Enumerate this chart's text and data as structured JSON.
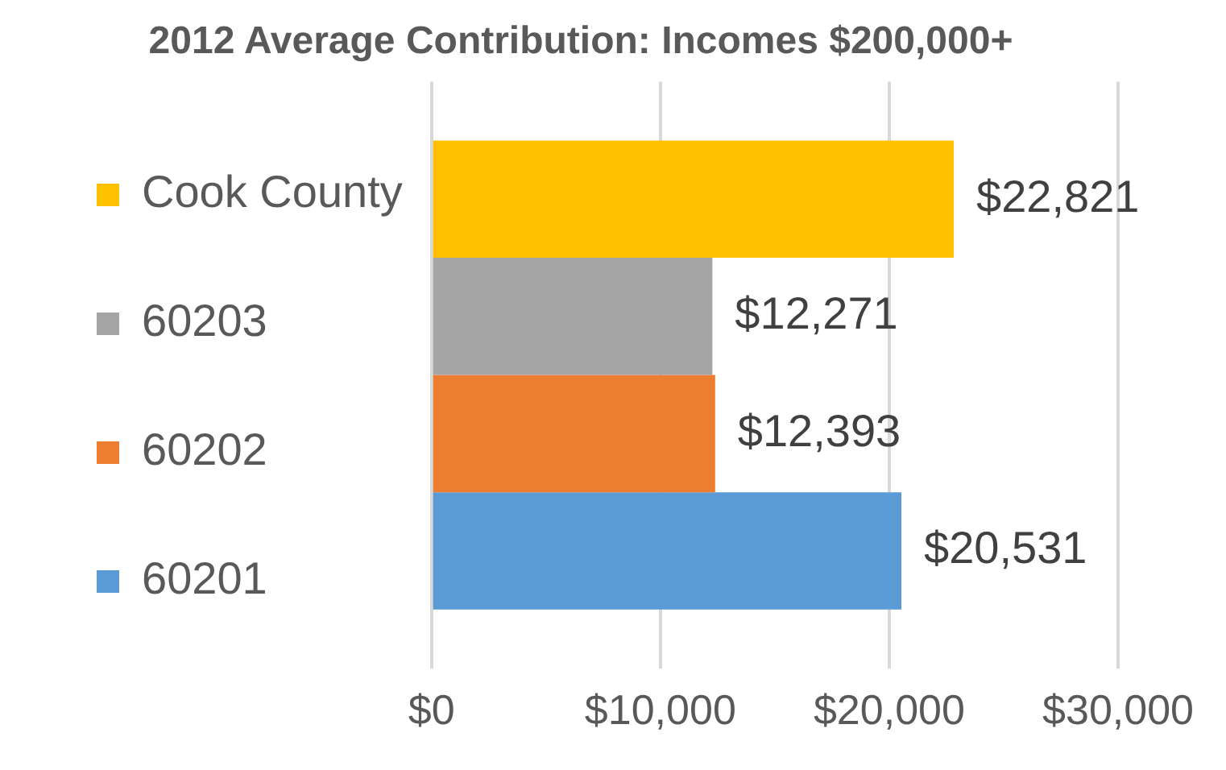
{
  "chart_data": {
    "type": "bar",
    "orientation": "horizontal",
    "title": "2012 Average Contribution: Incomes $200,000+",
    "categories": [
      null
    ],
    "series": [
      {
        "name": "Cook County",
        "color": "#ffc000",
        "values": [
          22821
        ],
        "value_labels": [
          "$22,821"
        ]
      },
      {
        "name": "60203",
        "color": "#a5a5a5",
        "values": [
          12271
        ],
        "value_labels": [
          "$12,271"
        ]
      },
      {
        "name": "60202",
        "color": "#ed7d31",
        "values": [
          12393
        ],
        "value_labels": [
          "$12,393"
        ]
      },
      {
        "name": "60201",
        "color": "#5b9bd5",
        "values": [
          20531
        ],
        "value_labels": [
          "$20,531"
        ]
      }
    ],
    "xlim": [
      0,
      30000
    ],
    "xticks": [
      {
        "value": 0,
        "label": "$0"
      },
      {
        "value": 10000,
        "label": "$10,000"
      },
      {
        "value": 20000,
        "label": "$20,000"
      },
      {
        "value": 30000,
        "label": "$30,000"
      }
    ],
    "grid": "x",
    "legend": "left"
  }
}
